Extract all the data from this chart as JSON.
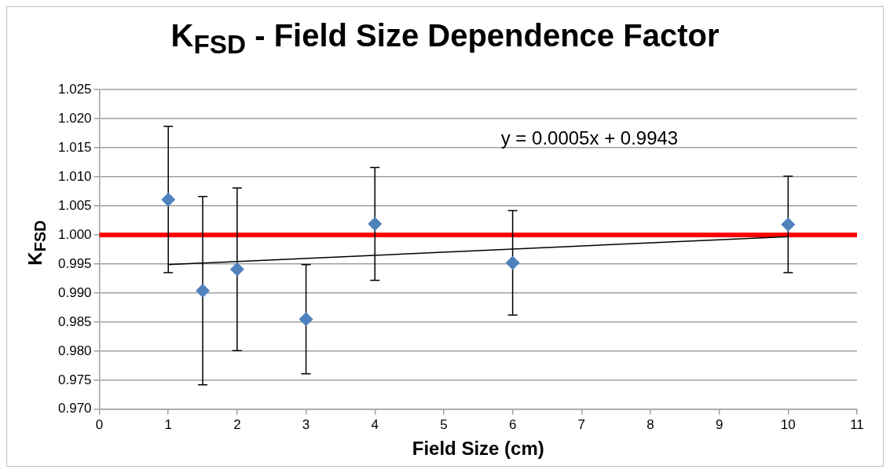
{
  "chart_data": {
    "type": "scatter",
    "title": "K$_{FSD}$ - Field Size Dependence Factor",
    "xlabel": "Field Size (cm)",
    "ylabel": "K$_{FSD}$",
    "x": [
      1,
      1.5,
      2,
      3,
      4,
      6,
      10
    ],
    "series": [
      {
        "color": "#4f81bd",
        "marker": "diamond",
        "values": [
          1.0061,
          0.9904,
          0.9941,
          0.9855,
          1.0019,
          0.9952,
          1.0018
        ],
        "errors": [
          0.0126,
          0.0162,
          0.014,
          0.0094,
          0.0097,
          0.009,
          0.0083
        ]
      },
      {
        "type": "line",
        "marker": "none",
        "color": "#000000",
        "x": [
          1,
          10
        ],
        "values": [
          0.9949,
          0.9997
        ]
      }
    ],
    "xlim": [
      0,
      11
    ],
    "xticks": [
      0,
      1,
      2,
      3,
      4,
      5,
      6,
      7,
      8,
      9,
      10,
      11
    ],
    "ylim": [
      0.97,
      1.025
    ],
    "yticks": [
      {
        "value": 0.97,
        "label": "0.970"
      },
      {
        "value": 0.975,
        "label": "0.975"
      },
      {
        "value": 0.98,
        "label": "0.980"
      },
      {
        "value": 0.985,
        "label": "0.985"
      },
      {
        "value": 0.99,
        "label": "0.990"
      },
      {
        "value": 0.995,
        "label": "0.995"
      },
      {
        "value": 1,
        "label": "1.000"
      },
      {
        "value": 1.005,
        "label": "1.005"
      },
      {
        "value": 1.01,
        "label": "1.010"
      },
      {
        "value": 1.015,
        "label": "1.015"
      },
      {
        "value": 1.02,
        "label": "1.020"
      },
      {
        "value": 1.025,
        "label": "1.025"
      }
    ],
    "ref_lines": [
      {
        "axis": "y",
        "value": 1,
        "color": "#ff0000"
      }
    ],
    "annotations": [
      "y = 0.0005x + 0.9943"
    ],
    "grid": "y",
    "legend": false
  }
}
